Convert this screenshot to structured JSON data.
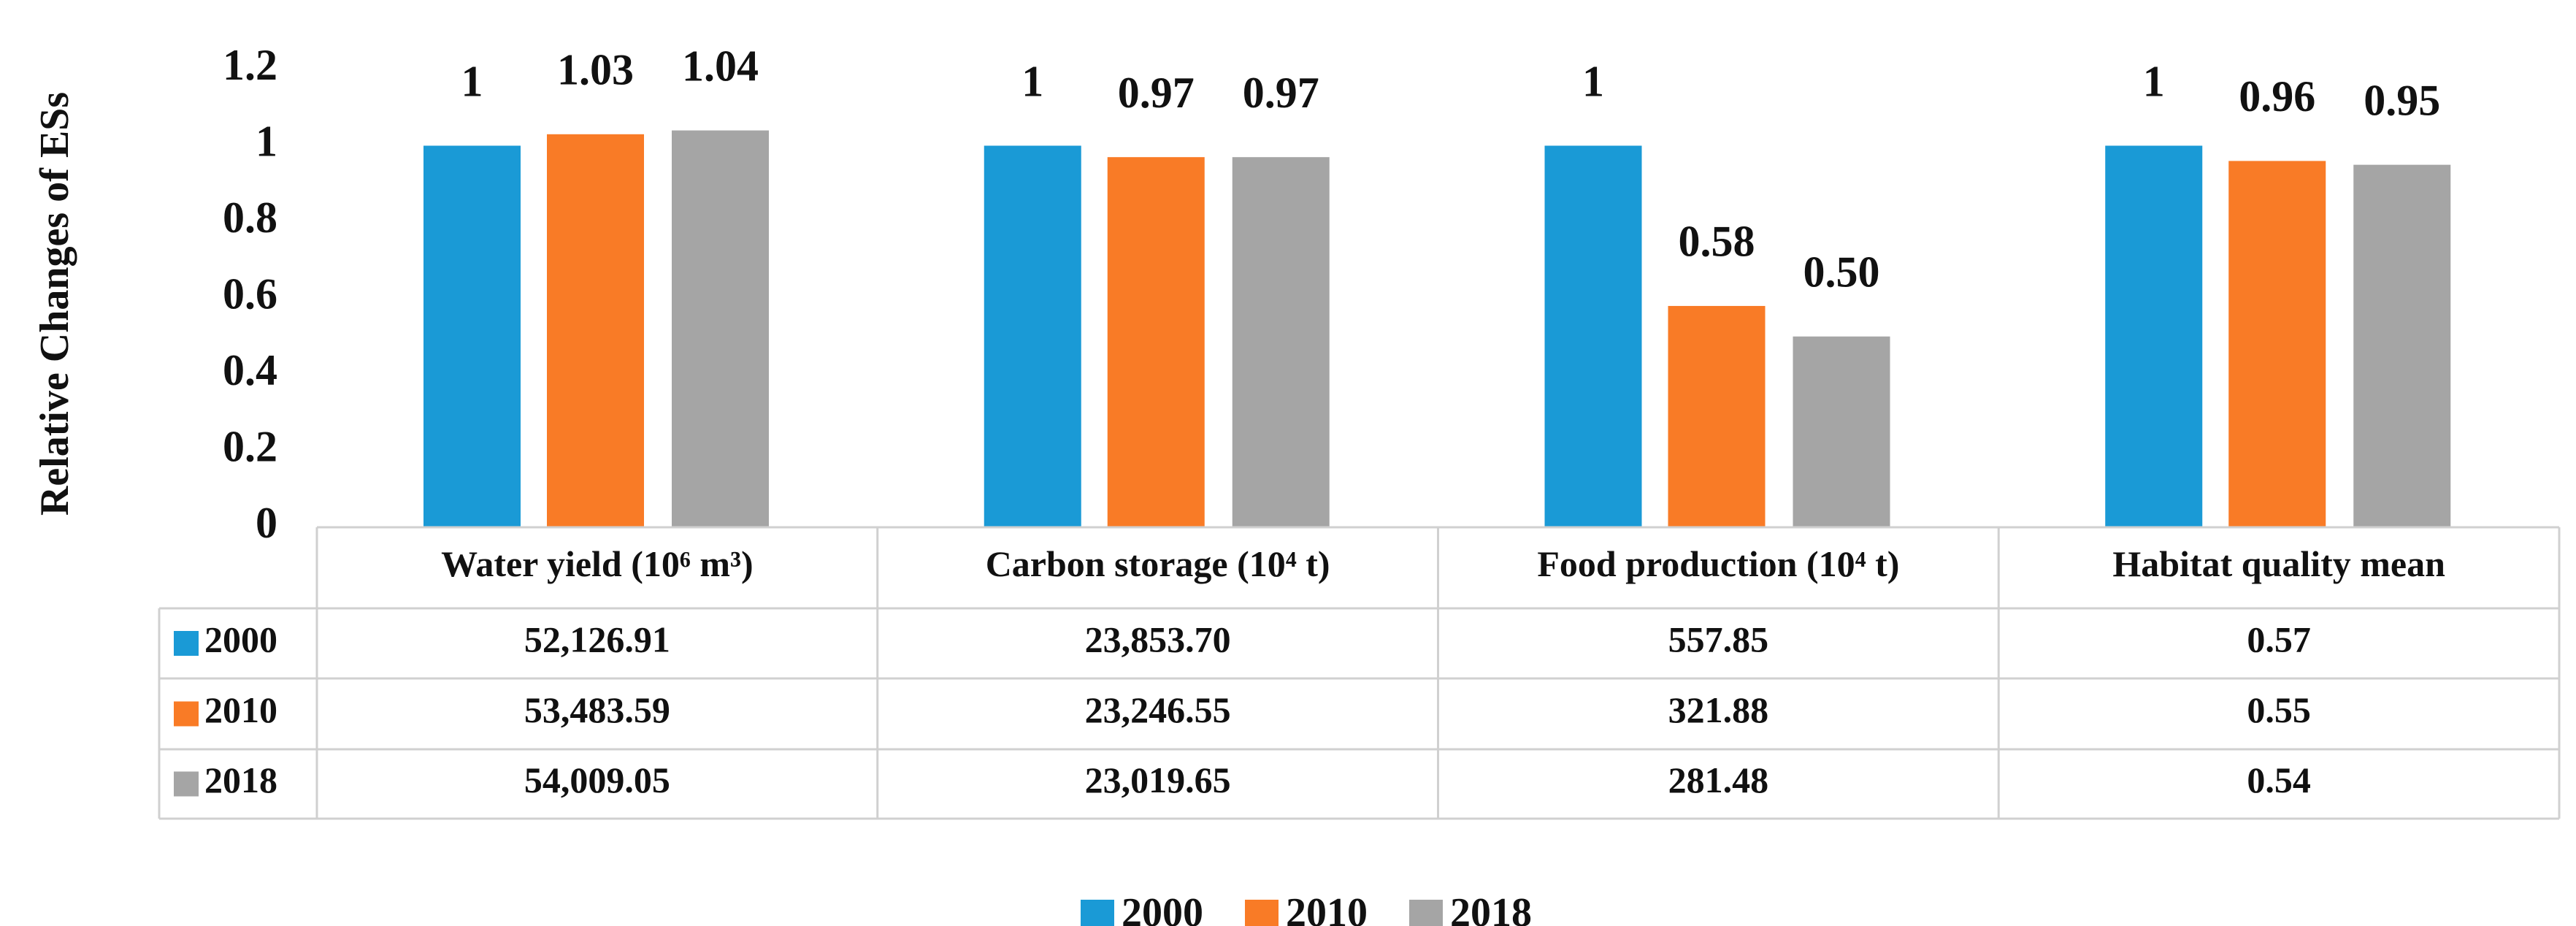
{
  "chart_data": {
    "type": "bar",
    "y_label": "Relative Changes of ESs",
    "categories": [
      "Water yield  (10⁶ m³)",
      "Carbon storage  (10⁴ t)",
      "Food production (10⁴ t)",
      "Habitat quality mean"
    ],
    "series": [
      {
        "name": "2000",
        "color": "#1a9ad6",
        "values": [
          1,
          1,
          1,
          1
        ],
        "value_labels": [
          "1",
          "1",
          "1",
          "1"
        ],
        "table_values": [
          "52,126.91",
          "23,853.70",
          "557.85",
          "0.57"
        ]
      },
      {
        "name": "2010",
        "color": "#f97b26",
        "values": [
          1.03,
          0.97,
          0.58,
          0.96
        ],
        "value_labels": [
          "1.03",
          "0.97",
          "0.58",
          "0.96"
        ],
        "table_values": [
          "53,483.59",
          "23,246.55",
          "321.88",
          "0.55"
        ]
      },
      {
        "name": "2018",
        "color": "#a5a5a5",
        "values": [
          1.04,
          0.97,
          0.5,
          0.95
        ],
        "value_labels": [
          "1.04",
          "0.97",
          "0.50",
          "0.95"
        ],
        "table_values": [
          "54,009.05",
          "23,019.65",
          "281.48",
          "0.54"
        ]
      }
    ],
    "ylim": [
      0,
      1.2
    ],
    "yticks": [
      0,
      0.2,
      0.4,
      0.6,
      0.8,
      1,
      1.2
    ],
    "grid": false
  }
}
